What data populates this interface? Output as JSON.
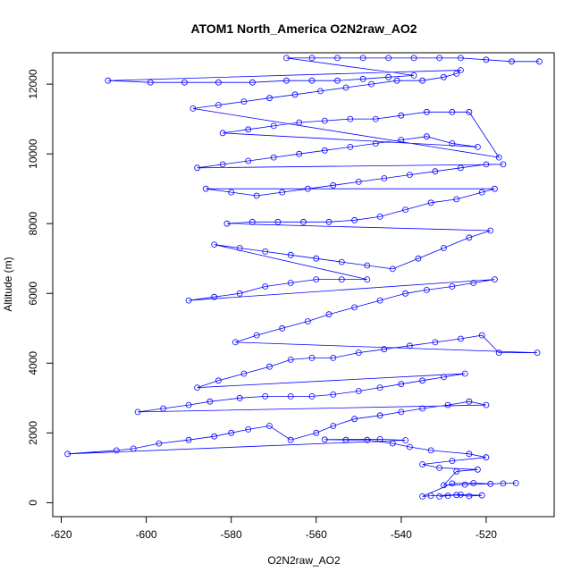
{
  "chart_data": {
    "type": "scatter",
    "title": "ATOM1 North_America O2N2raw_AO2",
    "xlabel": "O2N2raw_AO2",
    "ylabel": "Altitude (m)",
    "xlim": [
      -622,
      -504
    ],
    "ylim": [
      -400,
      12900
    ],
    "x_ticks": [
      -620,
      -600,
      -580,
      -560,
      -540,
      -520
    ],
    "y_ticks": [
      0,
      2000,
      4000,
      6000,
      8000,
      10000,
      12000
    ],
    "x_tick_labels": [
      "-620",
      "-600",
      "-580",
      "-560",
      "-540",
      "-520"
    ],
    "y_tick_labels": [
      "0",
      "2000",
      "4000",
      "6000",
      "8000",
      "10000",
      "12000"
    ],
    "grid": false,
    "marker": "open-circle",
    "connected": true,
    "series_color": "#0000ff",
    "series": [
      {
        "points": [
          [
            -529,
            200
          ],
          [
            -531,
            180
          ],
          [
            -527,
            220
          ],
          [
            -524,
            190
          ],
          [
            -521,
            210
          ],
          [
            -526,
            230
          ],
          [
            -533,
            200
          ],
          [
            -535,
            180
          ],
          [
            -528,
            550
          ],
          [
            -523,
            560
          ],
          [
            -519,
            540
          ],
          [
            -516,
            550
          ],
          [
            -513,
            560
          ],
          [
            -525,
            520
          ],
          [
            -530,
            500
          ],
          [
            -527,
            900
          ],
          [
            -522,
            950
          ],
          [
            -531,
            1000
          ],
          [
            -535,
            1100
          ],
          [
            -528,
            1200
          ],
          [
            -520,
            1300
          ],
          [
            -524,
            1400
          ],
          [
            -533,
            1500
          ],
          [
            -538,
            1600
          ],
          [
            -542,
            1700
          ],
          [
            -548,
            1800
          ],
          [
            -553,
            1800
          ],
          [
            -558,
            1810
          ],
          [
            -545,
            1820
          ],
          [
            -539,
            1790
          ],
          [
            -618.5,
            1400
          ],
          [
            -607,
            1500
          ],
          [
            -603,
            1550
          ],
          [
            -597,
            1700
          ],
          [
            -590,
            1800
          ],
          [
            -584,
            1900
          ],
          [
            -580,
            2000
          ],
          [
            -576,
            2100
          ],
          [
            -571,
            2200
          ],
          [
            -566,
            1800
          ],
          [
            -560,
            2000
          ],
          [
            -556,
            2200
          ],
          [
            -551,
            2400
          ],
          [
            -545,
            2500
          ],
          [
            -540,
            2600
          ],
          [
            -535,
            2700
          ],
          [
            -529,
            2800
          ],
          [
            -524,
            2900
          ],
          [
            -520,
            2800
          ],
          [
            -602,
            2600
          ],
          [
            -596,
            2700
          ],
          [
            -590,
            2800
          ],
          [
            -585,
            2900
          ],
          [
            -578,
            3000
          ],
          [
            -572,
            3050
          ],
          [
            -566,
            3050
          ],
          [
            -561,
            3050
          ],
          [
            -556,
            3100
          ],
          [
            -550,
            3200
          ],
          [
            -545,
            3300
          ],
          [
            -540,
            3400
          ],
          [
            -535,
            3500
          ],
          [
            -530,
            3600
          ],
          [
            -525,
            3700
          ],
          [
            -588,
            3300
          ],
          [
            -583,
            3500
          ],
          [
            -577,
            3700
          ],
          [
            -571,
            3900
          ],
          [
            -566,
            4100
          ],
          [
            -561,
            4150
          ],
          [
            -556,
            4150
          ],
          [
            -550,
            4300
          ],
          [
            -544,
            4400
          ],
          [
            -538,
            4500
          ],
          [
            -532,
            4600
          ],
          [
            -526,
            4700
          ],
          [
            -521,
            4800
          ],
          [
            -517,
            4300
          ],
          [
            -508,
            4300
          ],
          [
            -579,
            4600
          ],
          [
            -574,
            4800
          ],
          [
            -568,
            5000
          ],
          [
            -562,
            5200
          ],
          [
            -557,
            5400
          ],
          [
            -551,
            5600
          ],
          [
            -545,
            5800
          ],
          [
            -539,
            6000
          ],
          [
            -534,
            6100
          ],
          [
            -528,
            6200
          ],
          [
            -523,
            6300
          ],
          [
            -518,
            6400
          ],
          [
            -590,
            5800
          ],
          [
            -584,
            5900
          ],
          [
            -578,
            6000
          ],
          [
            -572,
            6200
          ],
          [
            -566,
            6300
          ],
          [
            -560,
            6400
          ],
          [
            -554,
            6400
          ],
          [
            -548,
            6400
          ],
          [
            -584,
            7400
          ],
          [
            -578,
            7300
          ],
          [
            -572,
            7200
          ],
          [
            -566,
            7100
          ],
          [
            -560,
            7000
          ],
          [
            -554,
            6900
          ],
          [
            -548,
            6800
          ],
          [
            -542,
            6700
          ],
          [
            -536,
            7000
          ],
          [
            -530,
            7300
          ],
          [
            -524,
            7600
          ],
          [
            -519,
            7800
          ],
          [
            -581,
            8000
          ],
          [
            -575,
            8050
          ],
          [
            -569,
            8050
          ],
          [
            -563,
            8050
          ],
          [
            -557,
            8050
          ],
          [
            -551,
            8100
          ],
          [
            -545,
            8200
          ],
          [
            -539,
            8400
          ],
          [
            -533,
            8600
          ],
          [
            -527,
            8700
          ],
          [
            -521,
            8900
          ],
          [
            -518,
            9000
          ],
          [
            -586,
            9000
          ],
          [
            -580,
            8900
          ],
          [
            -574,
            8800
          ],
          [
            -568,
            8900
          ],
          [
            -562,
            9000
          ],
          [
            -556,
            9100
          ],
          [
            -550,
            9200
          ],
          [
            -544,
            9300
          ],
          [
            -538,
            9400
          ],
          [
            -532,
            9500
          ],
          [
            -526,
            9600
          ],
          [
            -520,
            9700
          ],
          [
            -516,
            9700
          ],
          [
            -588,
            9600
          ],
          [
            -582,
            9700
          ],
          [
            -576,
            9800
          ],
          [
            -570,
            9900
          ],
          [
            -564,
            10000
          ],
          [
            -558,
            10100
          ],
          [
            -552,
            10200
          ],
          [
            -546,
            10300
          ],
          [
            -540,
            10400
          ],
          [
            -534,
            10500
          ],
          [
            -528,
            10300
          ],
          [
            -522,
            10200
          ],
          [
            -582,
            10600
          ],
          [
            -576,
            10700
          ],
          [
            -570,
            10800
          ],
          [
            -564,
            10900
          ],
          [
            -558,
            10950
          ],
          [
            -552,
            11000
          ],
          [
            -546,
            11000
          ],
          [
            -540,
            11100
          ],
          [
            -534,
            11200
          ],
          [
            -528,
            11200
          ],
          [
            -524,
            11200
          ],
          [
            -517,
            9900
          ],
          [
            -589,
            11300
          ],
          [
            -583,
            11400
          ],
          [
            -577,
            11500
          ],
          [
            -571,
            11600
          ],
          [
            -565,
            11700
          ],
          [
            -559,
            11800
          ],
          [
            -553,
            11900
          ],
          [
            -547,
            12000
          ],
          [
            -541,
            12100
          ],
          [
            -535,
            12100
          ],
          [
            -530,
            12200
          ],
          [
            -527,
            12300
          ],
          [
            -526,
            12400
          ],
          [
            -609,
            12100
          ],
          [
            -599,
            12050
          ],
          [
            -591,
            12050
          ],
          [
            -583,
            12050
          ],
          [
            -575,
            12050
          ],
          [
            -567,
            12100
          ],
          [
            -561,
            12100
          ],
          [
            -555,
            12100
          ],
          [
            -549,
            12150
          ],
          [
            -543,
            12200
          ],
          [
            -537,
            12250
          ],
          [
            -567,
            12750
          ],
          [
            -561,
            12750
          ],
          [
            -555,
            12750
          ],
          [
            -549,
            12750
          ],
          [
            -543,
            12750
          ],
          [
            -537,
            12750
          ],
          [
            -531,
            12750
          ],
          [
            -526,
            12750
          ],
          [
            -520,
            12700
          ],
          [
            -514,
            12650
          ],
          [
            -507.5,
            12650
          ]
        ]
      }
    ]
  }
}
